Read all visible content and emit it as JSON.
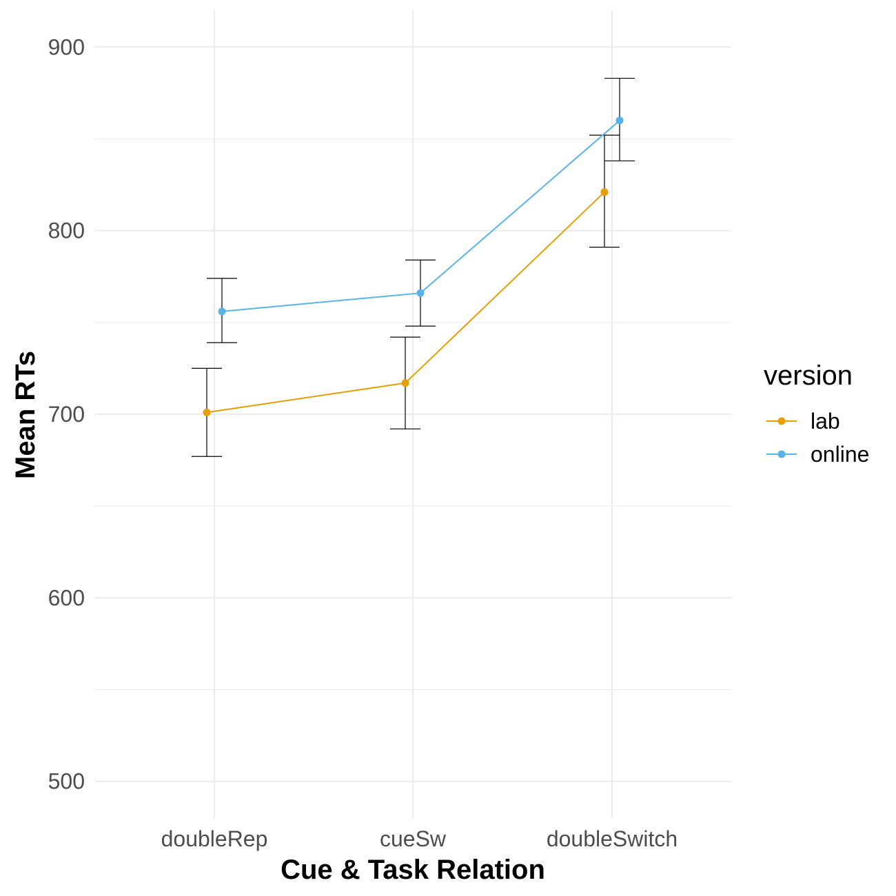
{
  "chart_data": {
    "type": "line",
    "title": "",
    "xlabel": "Cue & Task Relation",
    "ylabel": "Mean RTs",
    "categories": [
      "doubleRep",
      "cueSw",
      "doubleSwitch"
    ],
    "ylim": [
      480,
      920
    ],
    "yticks": [
      500,
      600,
      700,
      800,
      900
    ],
    "yticks_minor": [
      550,
      650,
      750,
      850
    ],
    "grid": true,
    "legend": {
      "title": "version",
      "placement": "right"
    },
    "series": [
      {
        "name": "lab",
        "color": "#E69F00",
        "values": [
          701,
          717,
          821
        ],
        "error_low": [
          677,
          692,
          791
        ],
        "error_high": [
          725,
          742,
          852
        ]
      },
      {
        "name": "online",
        "color": "#56B4E9",
        "values": [
          756,
          766,
          860
        ],
        "error_low": [
          739,
          748,
          838
        ],
        "error_high": [
          774,
          784,
          883
        ]
      }
    ]
  }
}
